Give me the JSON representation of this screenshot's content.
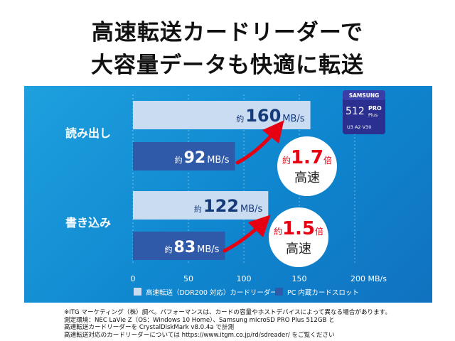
{
  "headline": {
    "line1": "高速転送カードリーダーで",
    "line2": "大容量データも快適に転送"
  },
  "chart_data": {
    "type": "bar",
    "orientation": "horizontal",
    "unit": "MB/s",
    "categories": [
      "読み出し",
      "書き込み"
    ],
    "series": [
      {
        "name": "高速転送（DDR200 対応）カードリーダー",
        "color": "#c9dcf2",
        "values": [
          160,
          122
        ]
      },
      {
        "name": "PC 内蔵カードスロット",
        "color": "#2e5aa9",
        "values": [
          92,
          83
        ]
      }
    ],
    "xlim": [
      0,
      200
    ],
    "x_ticks": [
      {
        "value": 0,
        "label": "0"
      },
      {
        "value": 50,
        "label": "50"
      },
      {
        "value": 100,
        "label": "100"
      },
      {
        "value": 150,
        "label": "150"
      },
      {
        "value": 200,
        "label": "200 MB/s"
      }
    ],
    "grid": true,
    "legend_position": "bottom",
    "value_prefix": "約",
    "bar_labels": [
      {
        "prefix": "約",
        "value": "160",
        "unit": "MB/s"
      },
      {
        "prefix": "約",
        "value": "92",
        "unit": "MB/s"
      },
      {
        "prefix": "約",
        "value": "122",
        "unit": "MB/s"
      },
      {
        "prefix": "約",
        "value": "83",
        "unit": "MB/s"
      }
    ],
    "annotations": [
      {
        "prefix": "約",
        "value": "1.7",
        "suffix": "倍",
        "text": "高速"
      },
      {
        "prefix": "約",
        "value": "1.5",
        "suffix": "倍",
        "text": "高速"
      }
    ]
  },
  "product_card": {
    "brand": "SAMSUNG",
    "capacity": "512",
    "line": "PRO",
    "subline": "Plus",
    "marks": "U3  A2  V30"
  },
  "colors": {
    "panel": "#1189d2",
    "bar_light": "#c9dcf2",
    "bar_dark": "#2e5aa9",
    "accent_red": "#e60012"
  },
  "notes": [
    "※ITG マーケティング（株）調べ。パフォーマンスは、カードの容量やホストデバイスによって異なる場合があります。",
    "測定環境：NEC LaVie Z（OS：Windows 10 Home）、Samsung microSD PRO Plus 512GB と",
    "高速転送カードリーダーを CrystalDiskMark v8.0.4a で計測",
    "高速転送対応のカードリーダーについては https://www.itgm.co.jp/rd/sdreader/ をご覧ください"
  ]
}
